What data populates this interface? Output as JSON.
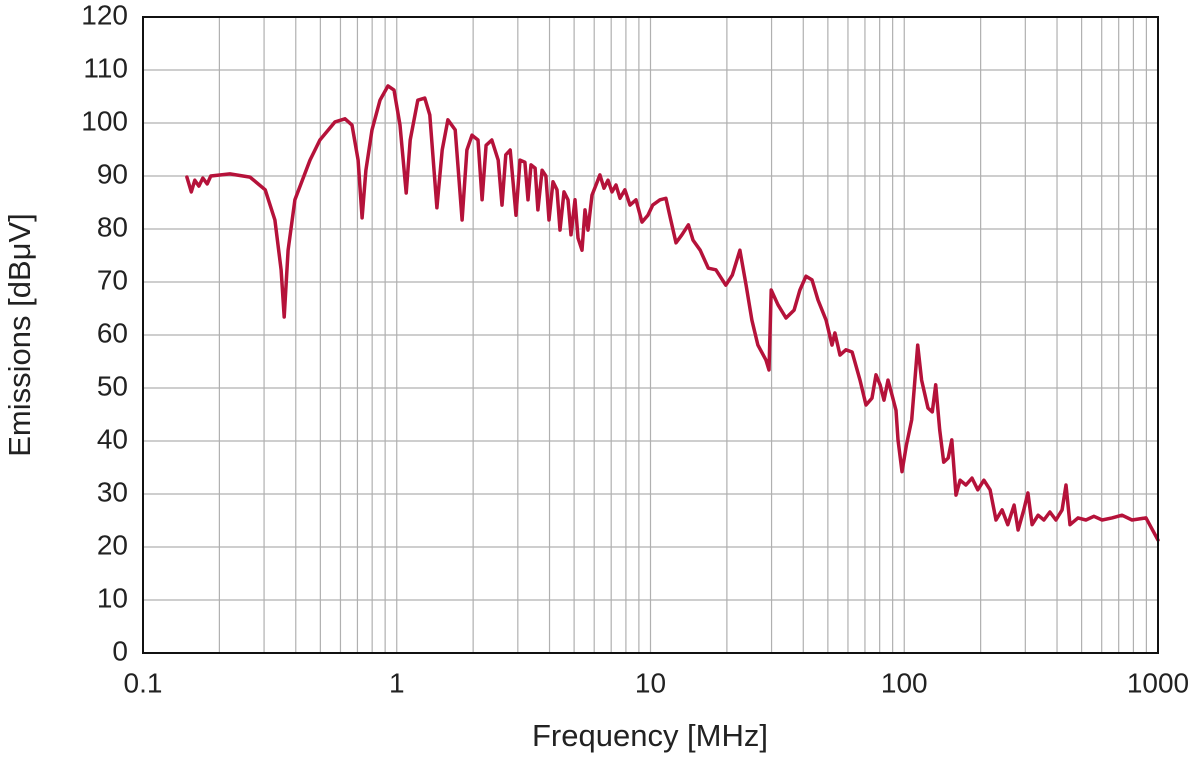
{
  "chart_data": {
    "type": "line",
    "x_label": "Frequency [MHz]",
    "y_label": "Emissions [dBμV]",
    "x_scale": "log",
    "grid": true,
    "color": "#b5123a",
    "xlim": [
      0.1,
      1000
    ],
    "xticks": [
      0.1,
      1,
      10,
      100,
      1000
    ],
    "ylim": [
      0,
      120
    ],
    "yticks": [
      0,
      10,
      20,
      30,
      40,
      50,
      60,
      70,
      80,
      90,
      100,
      110,
      120
    ],
    "x": [
      0.149,
      0.155,
      0.16,
      0.166,
      0.172,
      0.179,
      0.185,
      0.22,
      0.264,
      0.303,
      0.331,
      0.35,
      0.36,
      0.373,
      0.397,
      0.455,
      0.498,
      0.571,
      0.625,
      0.666,
      0.704,
      0.73,
      0.756,
      0.799,
      0.859,
      0.924,
      0.975,
      1.03,
      1.09,
      1.13,
      1.21,
      1.29,
      1.35,
      1.44,
      1.51,
      1.59,
      1.7,
      1.81,
      1.89,
      1.98,
      2.09,
      2.17,
      2.25,
      2.37,
      2.51,
      2.6,
      2.69,
      2.8,
      2.95,
      3.06,
      3.2,
      3.29,
      3.38,
      3.51,
      3.6,
      3.74,
      3.87,
      3.98,
      4.13,
      4.28,
      4.4,
      4.56,
      4.73,
      4.86,
      5.04,
      5.18,
      5.37,
      5.52,
      5.67,
      5.88,
      6.1,
      6.32,
      6.56,
      6.8,
      7.05,
      7.31,
      7.58,
      7.93,
      8.3,
      8.77,
      9.26,
      9.77,
      10.2,
      10.9,
      11.5,
      11.9,
      12.6,
      13.3,
      14.1,
      14.7,
      15.7,
      16.9,
      18.1,
      19.8,
      21.0,
      22.5,
      23.8,
      25.1,
      26.5,
      28.5,
      29.3,
      29.9,
      31.8,
      34.2,
      36.8,
      38.8,
      41.0,
      43.3,
      45.7,
      49.2,
      51.9,
      53.3,
      55.8,
      58.9,
      62.3,
      66.9,
      70.7,
      74.6,
      77.4,
      80.3,
      83.2,
      86.3,
      89.5,
      92.8,
      94.5,
      98.0,
      102,
      107,
      113,
      117,
      124,
      129,
      133,
      138,
      143,
      149,
      154,
      160,
      166,
      175,
      185,
      195,
      206,
      218,
      230,
      243,
      256,
      271,
      281,
      296,
      307,
      319,
      337,
      355,
      375,
      396,
      419,
      434,
      450,
      484,
      520,
      559,
      602,
      659,
      721,
      790,
      897,
      1000
    ],
    "values": [
      89.8,
      87.0,
      89.2,
      88.1,
      89.6,
      88.5,
      90.0,
      90.4,
      89.8,
      87.4,
      81.7,
      72.3,
      63.4,
      76.0,
      85.5,
      93.0,
      96.8,
      100.2,
      100.8,
      99.6,
      93.0,
      82.1,
      91.1,
      98.7,
      104.3,
      107.0,
      106.2,
      99.6,
      86.8,
      96.8,
      104.3,
      104.7,
      101.5,
      84.0,
      94.9,
      100.6,
      98.7,
      81.7,
      94.9,
      97.7,
      96.8,
      85.5,
      95.8,
      96.8,
      93.0,
      84.5,
      94.0,
      94.9,
      82.6,
      93.0,
      92.6,
      85.5,
      92.1,
      91.5,
      83.6,
      91.1,
      90.0,
      81.7,
      88.9,
      87.4,
      79.8,
      87.0,
      85.5,
      78.9,
      85.5,
      78.3,
      76.0,
      83.6,
      79.8,
      86.4,
      88.3,
      90.2,
      87.7,
      89.2,
      87.0,
      88.3,
      85.8,
      87.4,
      84.5,
      85.5,
      81.3,
      82.6,
      84.5,
      85.5,
      85.8,
      82.6,
      77.4,
      78.9,
      80.8,
      77.9,
      76.0,
      72.6,
      72.3,
      69.4,
      71.3,
      76.0,
      69.4,
      62.8,
      58.1,
      55.3,
      53.4,
      68.5,
      65.7,
      63.2,
      64.7,
      68.5,
      71.1,
      70.4,
      66.6,
      62.8,
      58.1,
      60.4,
      56.2,
      57.2,
      56.8,
      51.5,
      46.8,
      48.1,
      52.5,
      50.6,
      47.7,
      51.5,
      48.7,
      45.8,
      40.2,
      34.2,
      39.2,
      44.0,
      58.1,
      51.5,
      46.2,
      45.5,
      50.6,
      42.1,
      36.0,
      36.8,
      40.2,
      29.8,
      32.6,
      31.7,
      33.0,
      30.8,
      32.6,
      30.8,
      25.1,
      27.0,
      24.2,
      27.9,
      23.2,
      27.0,
      30.2,
      24.2,
      26.0,
      25.1,
      26.6,
      25.1,
      27.0,
      31.7,
      24.2,
      25.5,
      25.1,
      25.8,
      25.1,
      25.5,
      26.0,
      25.1,
      25.5,
      21.3
    ]
  }
}
